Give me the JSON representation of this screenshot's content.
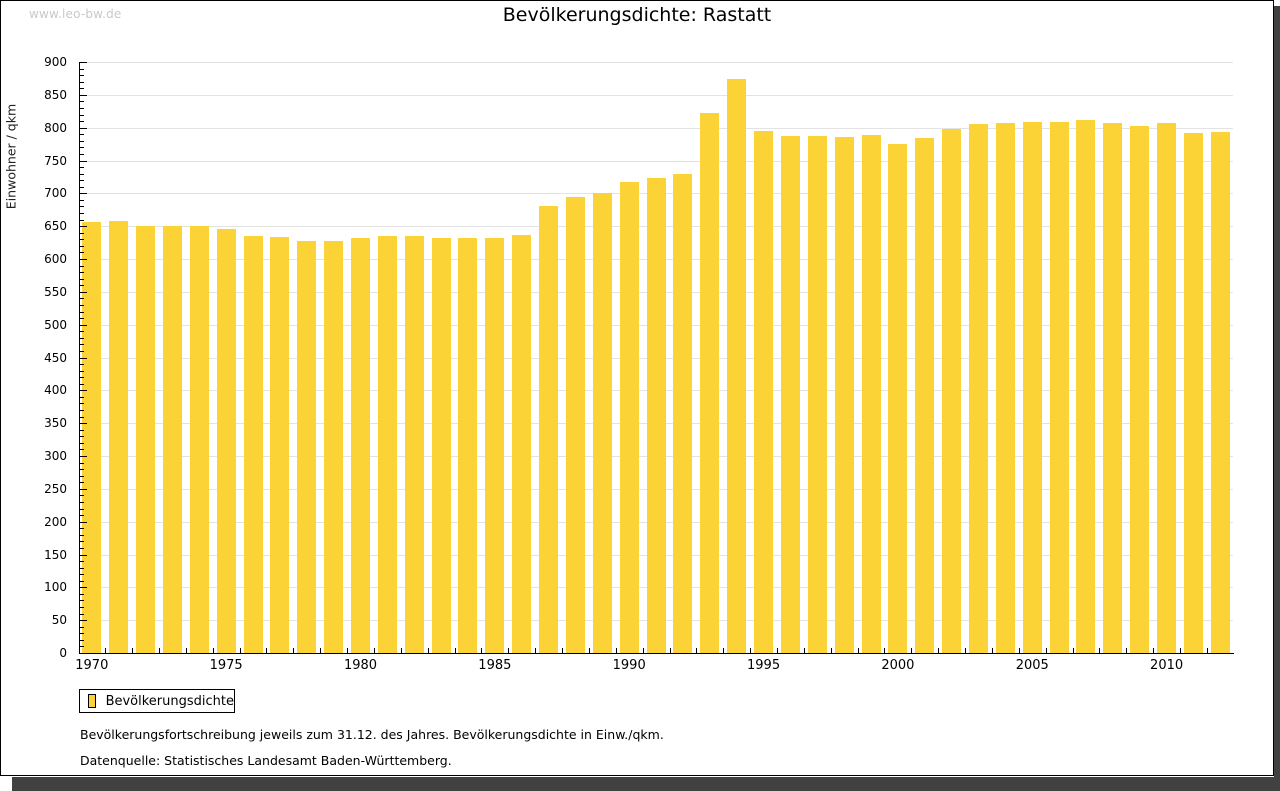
{
  "watermark": "www.leo-bw.de",
  "header": {
    "title": "Bevölkerungsdichte: Rastatt"
  },
  "legend": {
    "label": "Bevölkerungsdichte",
    "swatch_color": "#FCD337"
  },
  "notes": {
    "line1": "Bevölkerungsfortschreibung jeweils zum 31.12. des Jahres. Bevölkerungsdichte in Einw./qkm.",
    "line2": "Datenquelle: Statistisches Landesamt Baden-Württemberg."
  },
  "colors": {
    "bar": "#FCD337",
    "gridline": "#e3e3e3",
    "axis": "#000000",
    "watermark": "#c9c9c9",
    "frame_shadow": "#414141"
  },
  "chart_data": {
    "type": "bar",
    "title": "Bevölkerungsdichte: Rastatt",
    "xlabel": "",
    "ylabel": "Einwohner / qkm",
    "ylim": [
      0,
      900
    ],
    "ytick_step": 50,
    "y_minor_step": 10,
    "grid": true,
    "legend_position": "bottom-left",
    "series_name": "Bevölkerungsdichte",
    "categories": [
      1970,
      1971,
      1972,
      1973,
      1974,
      1975,
      1976,
      1977,
      1978,
      1979,
      1980,
      1981,
      1982,
      1983,
      1984,
      1985,
      1986,
      1987,
      1988,
      1989,
      1990,
      1991,
      1992,
      1993,
      1994,
      1995,
      1996,
      1997,
      1998,
      1999,
      2000,
      2001,
      2002,
      2003,
      2004,
      2005,
      2006,
      2007,
      2008,
      2009,
      2010,
      2011,
      2012
    ],
    "values": [
      657,
      658,
      651,
      650,
      651,
      645,
      635,
      634,
      627,
      627,
      632,
      635,
      635,
      632,
      632,
      632,
      637,
      680,
      695,
      700,
      718,
      724,
      729,
      823,
      874,
      795,
      788,
      787,
      786,
      789,
      775,
      785,
      798,
      805,
      807,
      809,
      808,
      812,
      807,
      803,
      807,
      792,
      794
    ],
    "xtick_labels": [
      1970,
      1975,
      1980,
      1985,
      1990,
      1995,
      2000,
      2005,
      2010
    ]
  }
}
